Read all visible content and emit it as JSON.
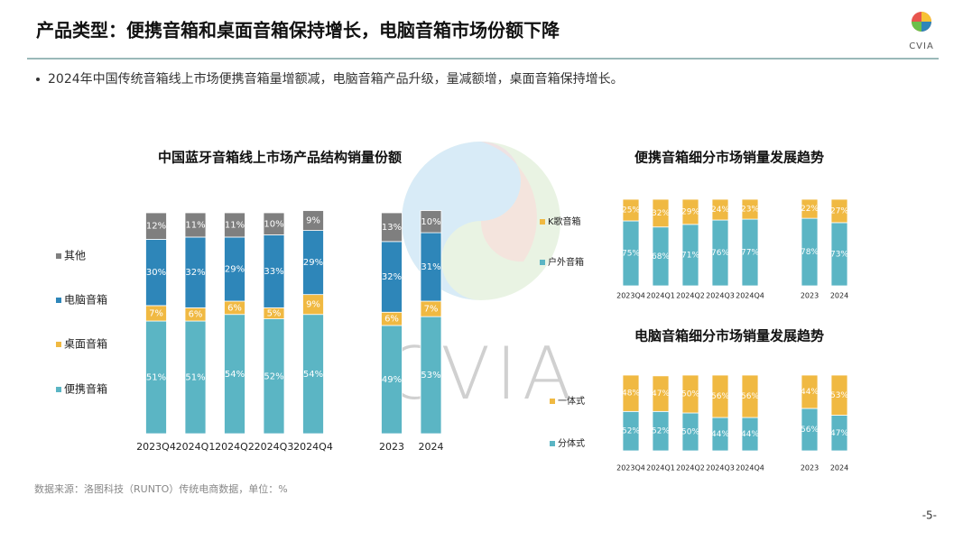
{
  "header": {
    "title": "产品类型：便携音箱和桌面音箱保持增长，电脑音箱市场份额下降",
    "logo_text": "CVIA"
  },
  "bullet": "2024年中国传统音箱线上市场便携音箱量增额减，电脑音箱产品升级，量减额增，桌面音箱保持增长。",
  "watermark_text": "CVIA",
  "source": "数据来源：洛图科技（RUNTO）传统电商数据，单位：%",
  "page_number": "-5-",
  "chart_data": [
    {
      "type": "stacked_bar",
      "title": "中国蓝牙音箱线上市场产品结构销量份额",
      "categories": [
        "2023Q4",
        "2024Q1",
        "2024Q2",
        "2024Q3",
        "2024Q4",
        null,
        "2023",
        "2024"
      ],
      "ylim": [
        0,
        100
      ],
      "series": [
        {
          "name": "便携音箱",
          "color": "#5bb5c4",
          "values": [
            51,
            51,
            54,
            52,
            54,
            null,
            49,
            53
          ],
          "value_labels": [
            "51%",
            "51%",
            "54%",
            "52%",
            "54%",
            null,
            "49%",
            "53%"
          ]
        },
        {
          "name": "桌面音箱",
          "color": "#f0b942",
          "values": [
            7,
            6,
            6,
            5,
            9,
            null,
            6,
            7
          ],
          "value_labels": [
            "7%",
            "6%",
            "6%",
            "5%",
            "9%",
            null,
            "6%",
            "7%"
          ]
        },
        {
          "name": "电脑音箱",
          "color": "#2e86b9",
          "values": [
            30,
            32,
            29,
            33,
            29,
            null,
            32,
            31
          ],
          "value_labels": [
            "30%",
            "32%",
            "29%",
            "33%",
            "29%",
            null,
            "32%",
            "31%"
          ]
        },
        {
          "name": "其他",
          "color": "#7f7f7f",
          "values": [
            12,
            11,
            11,
            10,
            9,
            null,
            13,
            10
          ],
          "value_labels": [
            "12%",
            "11%",
            "11%",
            "10%",
            "9%",
            null,
            "13%",
            "10%"
          ]
        }
      ]
    },
    {
      "type": "stacked_bar",
      "title": "便携音箱细分市场销量发展趋势",
      "categories": [
        "2023Q4",
        "2024Q1",
        "2024Q2",
        "2024Q3",
        "2024Q4",
        null,
        "2023",
        "2024"
      ],
      "ylim": [
        0,
        100
      ],
      "series": [
        {
          "name": "户外音箱",
          "color": "#5bb5c4",
          "values": [
            75,
            68,
            71,
            76,
            77,
            null,
            78,
            73
          ],
          "value_labels": [
            "75%",
            "68%",
            "71%",
            "76%",
            "77%",
            null,
            "78%",
            "73%"
          ]
        },
        {
          "name": "K歌音箱",
          "color": "#f0b942",
          "values": [
            25,
            32,
            29,
            24,
            23,
            null,
            22,
            27
          ],
          "value_labels": [
            "25%",
            "32%",
            "29%",
            "24%",
            "23%",
            null,
            "22%",
            "27%"
          ]
        }
      ]
    },
    {
      "type": "stacked_bar",
      "title": "电脑音箱细分市场销量发展趋势",
      "categories": [
        "2023Q4",
        "2024Q1",
        "2024Q2",
        "2024Q3",
        "2024Q4",
        null,
        "2023",
        "2024"
      ],
      "ylim": [
        0,
        100
      ],
      "series": [
        {
          "name": "分体式",
          "color": "#5bb5c4",
          "values": [
            52,
            52,
            50,
            44,
            44,
            null,
            56,
            47
          ],
          "value_labels": [
            "52%",
            "52%",
            "50%",
            "44%",
            "44%",
            null,
            "56%",
            "47%"
          ]
        },
        {
          "name": "一体式",
          "color": "#f0b942",
          "values": [
            48,
            47,
            50,
            56,
            56,
            null,
            44,
            53
          ],
          "value_labels": [
            "48%",
            "47%",
            "50%",
            "56%",
            "56%",
            null,
            "44%",
            "53%"
          ]
        }
      ]
    }
  ]
}
